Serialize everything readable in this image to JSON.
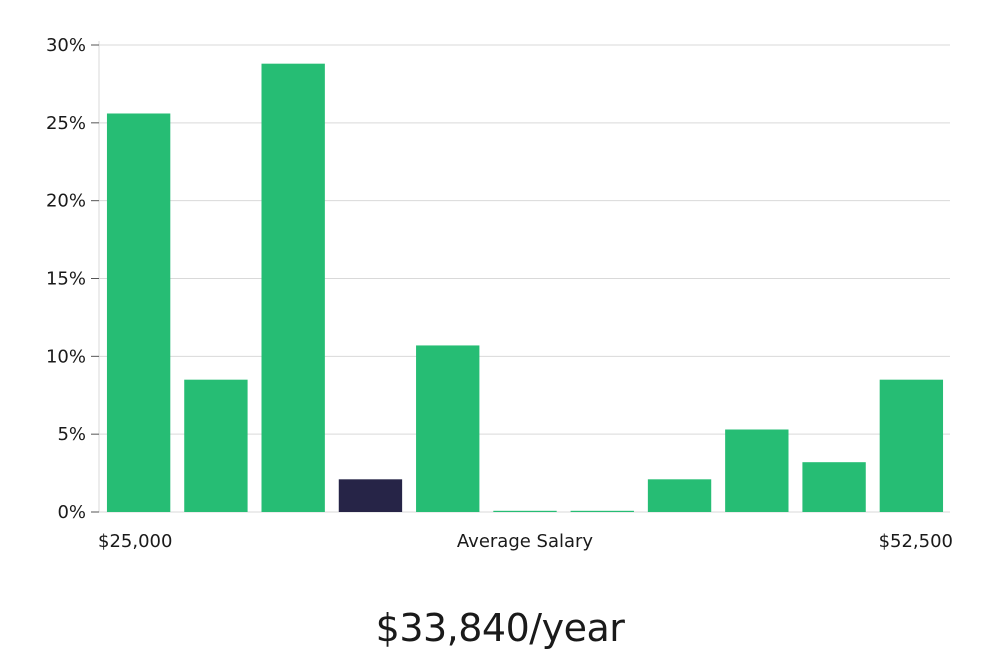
{
  "chart_data": {
    "type": "bar",
    "values": [
      25.6,
      8.5,
      28.8,
      2.1,
      10.7,
      0,
      0,
      2.1,
      5.3,
      3.2,
      8.5
    ],
    "highlight_index": 3,
    "ylim": [
      0,
      30
    ],
    "yticks": [
      0,
      5,
      10,
      15,
      20,
      25,
      30
    ],
    "ytick_labels": [
      "0%",
      "5%",
      "10%",
      "15%",
      "20%",
      "25%",
      "30%"
    ],
    "x_min_label": "$25,000",
    "x_max_label": "$52,500",
    "xlabel": "Average Salary",
    "grid": true
  },
  "colors": {
    "bar": "#26bd74",
    "bar_highlight": "#262447",
    "grid": "#d9d9d9",
    "text": "#1a1a1a"
  },
  "headline": "$33,840/year"
}
